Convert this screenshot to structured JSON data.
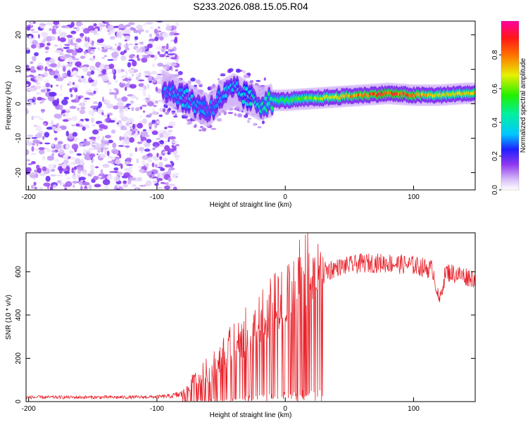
{
  "chart_data": {
    "title": "S233.2026.088.15.05.R04",
    "panels": [
      {
        "type": "heatmap",
        "xlabel": "Height of straight line (km)",
        "ylabel": "Frequency (Hz)",
        "xlim": [
          -202,
          148
        ],
        "ylim": [
          -25,
          24
        ],
        "xticks": [
          -200,
          -100,
          0,
          100
        ],
        "xtick_labels": [
          "-200",
          "-100",
          "0",
          "100"
        ],
        "yticks": [
          -20,
          -10,
          0,
          10,
          20
        ],
        "ytick_labels": [
          "-20",
          "-10",
          "0",
          "10",
          "20"
        ],
        "colorbar": {
          "label": "Normalized spectral amplitude",
          "range": [
            0,
            1
          ],
          "ticks": [
            0.0,
            0.2,
            0.4,
            0.6,
            0.8
          ],
          "tick_labels": [
            "0.0",
            "0.2",
            "0.4",
            "0.6",
            "0.8"
          ]
        },
        "ridge": {
          "x": [
            -95,
            -80,
            -70,
            -60,
            -50,
            -40,
            -30,
            -20,
            -10,
            0,
            20,
            40,
            60,
            80,
            100,
            120,
            140,
            148
          ],
          "freq": [
            5,
            2,
            0,
            -2,
            2,
            4,
            2,
            0,
            1,
            1,
            1.5,
            2,
            2.5,
            3,
            2.5,
            2.5,
            3,
            3
          ],
          "amplitude": [
            0.3,
            0.35,
            0.35,
            0.3,
            0.35,
            0.35,
            0.4,
            0.45,
            0.5,
            0.55,
            0.65,
            0.75,
            0.85,
            0.9,
            0.85,
            0.7,
            0.75,
            0.75
          ]
        },
        "noise_region_x": [
          -202,
          -90
        ]
      },
      {
        "type": "line",
        "xlabel": "Height of straight line (km)",
        "ylabel": "SNR (10 * v/v)",
        "xlim": [
          -202,
          148
        ],
        "ylim": [
          0,
          780
        ],
        "xticks": [
          -200,
          -100,
          0,
          100
        ],
        "xtick_labels": [
          "-200",
          "-100",
          "0",
          "100"
        ],
        "yticks": [
          0,
          200,
          400,
          600
        ],
        "ytick_labels": [
          "0",
          "200",
          "400",
          "600"
        ],
        "series": [
          {
            "name": "SNR",
            "color": "#e8222a",
            "x": [
              -202,
              -180,
              -160,
              -140,
              -120,
              -100,
              -90,
              -80,
              -70,
              -60,
              -50,
              -40,
              -30,
              -20,
              -10,
              0,
              10,
              20,
              30,
              40,
              60,
              80,
              100,
              115,
              120,
              125,
              140,
              148
            ],
            "y": [
              20,
              20,
              20,
              20,
              20,
              22,
              25,
              35,
              90,
              120,
              170,
              220,
              270,
              330,
              390,
              440,
              500,
              560,
              600,
              620,
              640,
              640,
              630,
              610,
              460,
              600,
              580,
              570
            ],
            "noise_amplitude": [
              8,
              8,
              8,
              8,
              8,
              8,
              10,
              20,
              60,
              90,
              120,
              150,
              170,
              190,
              200,
              220,
              240,
              260,
              60,
              40,
              45,
              45,
              45,
              45,
              30,
              45,
              45,
              45
            ]
          }
        ]
      }
    ]
  }
}
